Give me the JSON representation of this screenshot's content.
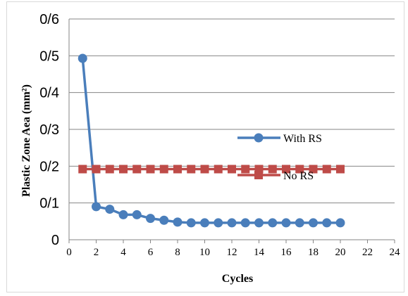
{
  "chart_data": {
    "type": "line",
    "title": "",
    "xlabel": "Cycles",
    "ylabel": "Plastic Zone Aea (mm²)",
    "xlim": [
      0,
      24
    ],
    "ylim": [
      0,
      0.6
    ],
    "x_ticks": [
      "0",
      "2",
      "4",
      "6",
      "8",
      "10",
      "12",
      "14",
      "16",
      "18",
      "20",
      "22",
      "24"
    ],
    "y_ticks": [
      "0",
      "0/1",
      "0/2",
      "0/3",
      "0/4",
      "0/5",
      "0/6"
    ],
    "grid": "horizontal",
    "legend_position": "inside-right",
    "series": [
      {
        "name": "With RS",
        "color": "#4a7ebb",
        "marker": "circle",
        "x": [
          1,
          2,
          3,
          4,
          5,
          6,
          7,
          8,
          9,
          10,
          11,
          12,
          13,
          14,
          15,
          16,
          17,
          18,
          19,
          20
        ],
        "y": [
          0.493,
          0.09,
          0.083,
          0.068,
          0.068,
          0.058,
          0.053,
          0.048,
          0.046,
          0.046,
          0.046,
          0.046,
          0.046,
          0.046,
          0.046,
          0.046,
          0.046,
          0.046,
          0.046,
          0.046
        ]
      },
      {
        "name": "No RS",
        "color": "#be4b48",
        "marker": "square",
        "x": [
          1,
          2,
          3,
          4,
          5,
          6,
          7,
          8,
          9,
          10,
          11,
          12,
          13,
          14,
          15,
          16,
          17,
          18,
          19,
          20
        ],
        "y": [
          0.192,
          0.192,
          0.192,
          0.192,
          0.192,
          0.192,
          0.192,
          0.192,
          0.192,
          0.192,
          0.192,
          0.192,
          0.192,
          0.192,
          0.192,
          0.192,
          0.192,
          0.192,
          0.192,
          0.192
        ]
      }
    ]
  }
}
